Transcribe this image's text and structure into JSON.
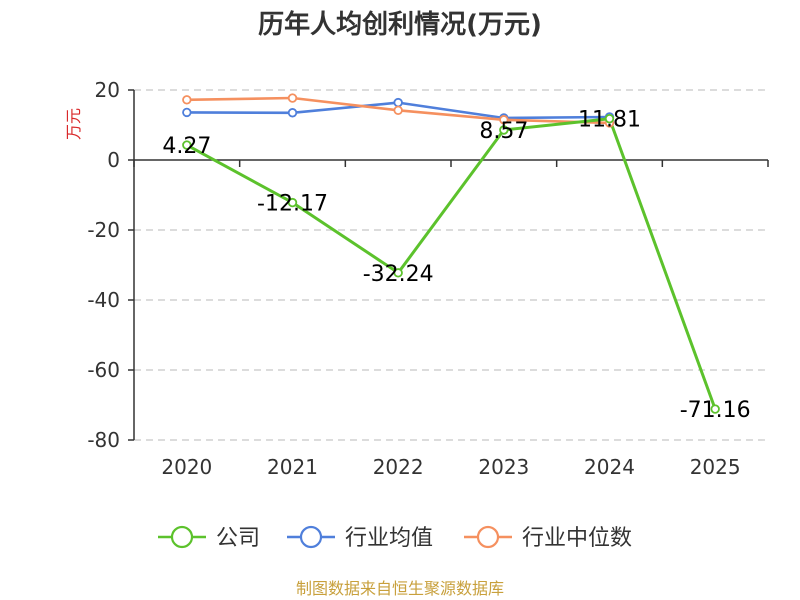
{
  "chart_data": {
    "type": "line",
    "title": "历年人均创利情况(万元)",
    "ylabel": "万元",
    "categories": [
      "2020",
      "2021",
      "2022",
      "2023",
      "2024",
      "2025"
    ],
    "ylim": [
      -80,
      20
    ],
    "yticks": [
      20,
      0,
      -20,
      -40,
      -60,
      -80
    ],
    "grid": true,
    "legend_position": "bottom",
    "series": [
      {
        "name": "公司",
        "color": "#5cc22c",
        "values": [
          4.27,
          -12.17,
          -32.24,
          8.57,
          11.81,
          -71.16
        ],
        "labels": [
          "4.27",
          "-12.17",
          "-32.24",
          "8.57",
          "11.81",
          "-71.16"
        ]
      },
      {
        "name": "行业均值",
        "color": "#4f7fdb",
        "values": [
          13.6,
          13.5,
          16.4,
          12.0,
          12.3,
          null
        ]
      },
      {
        "name": "行业中位数",
        "color": "#f5905f",
        "values": [
          17.2,
          17.7,
          14.2,
          11.5,
          10.6,
          null
        ]
      }
    ]
  },
  "source": "制图数据来自恒生聚源数据库"
}
